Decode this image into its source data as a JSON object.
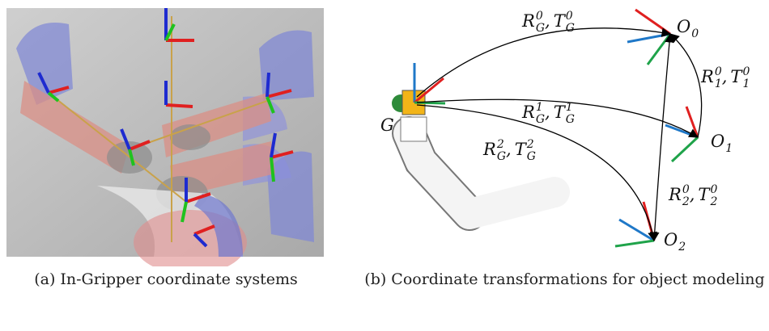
{
  "subfigures": [
    {
      "caption": "(a) In-Gripper coordinate systems"
    },
    {
      "caption": "(b) Coordinate transformations for object modeling",
      "nodes": [
        {
          "label": {
            "base": "G"
          }
        },
        {
          "label": {
            "base": "O",
            "sub": "0"
          }
        },
        {
          "label": {
            "base": "O",
            "sub": "1"
          }
        },
        {
          "label": {
            "base": "O",
            "sub": "2"
          }
        }
      ],
      "edges": [
        {
          "label": {
            "separator": ",",
            "terms": [
              {
                "base": "R",
                "sub": "G",
                "sup": "0"
              },
              {
                "base": "T",
                "sub": "G",
                "sup": "0"
              }
            ]
          }
        },
        {
          "label": {
            "separator": ",",
            "terms": [
              {
                "base": "R",
                "sub": "G",
                "sup": "1"
              },
              {
                "base": "T",
                "sub": "G",
                "sup": "1"
              }
            ]
          }
        },
        {
          "label": {
            "separator": ",",
            "terms": [
              {
                "base": "R",
                "sub": "G",
                "sup": "2"
              },
              {
                "base": "T",
                "sub": "G",
                "sup": "2"
              }
            ]
          }
        },
        {
          "label": {
            "separator": ",",
            "terms": [
              {
                "base": "R",
                "sub": "1",
                "sup": "0"
              },
              {
                "base": "T",
                "sub": "1",
                "sup": "0"
              }
            ]
          }
        },
        {
          "label": {
            "separator": ",",
            "terms": [
              {
                "base": "R",
                "sub": "2",
                "sup": "0"
              },
              {
                "base": "T",
                "sub": "2",
                "sup": "0"
              }
            ]
          }
        }
      ]
    }
  ]
}
